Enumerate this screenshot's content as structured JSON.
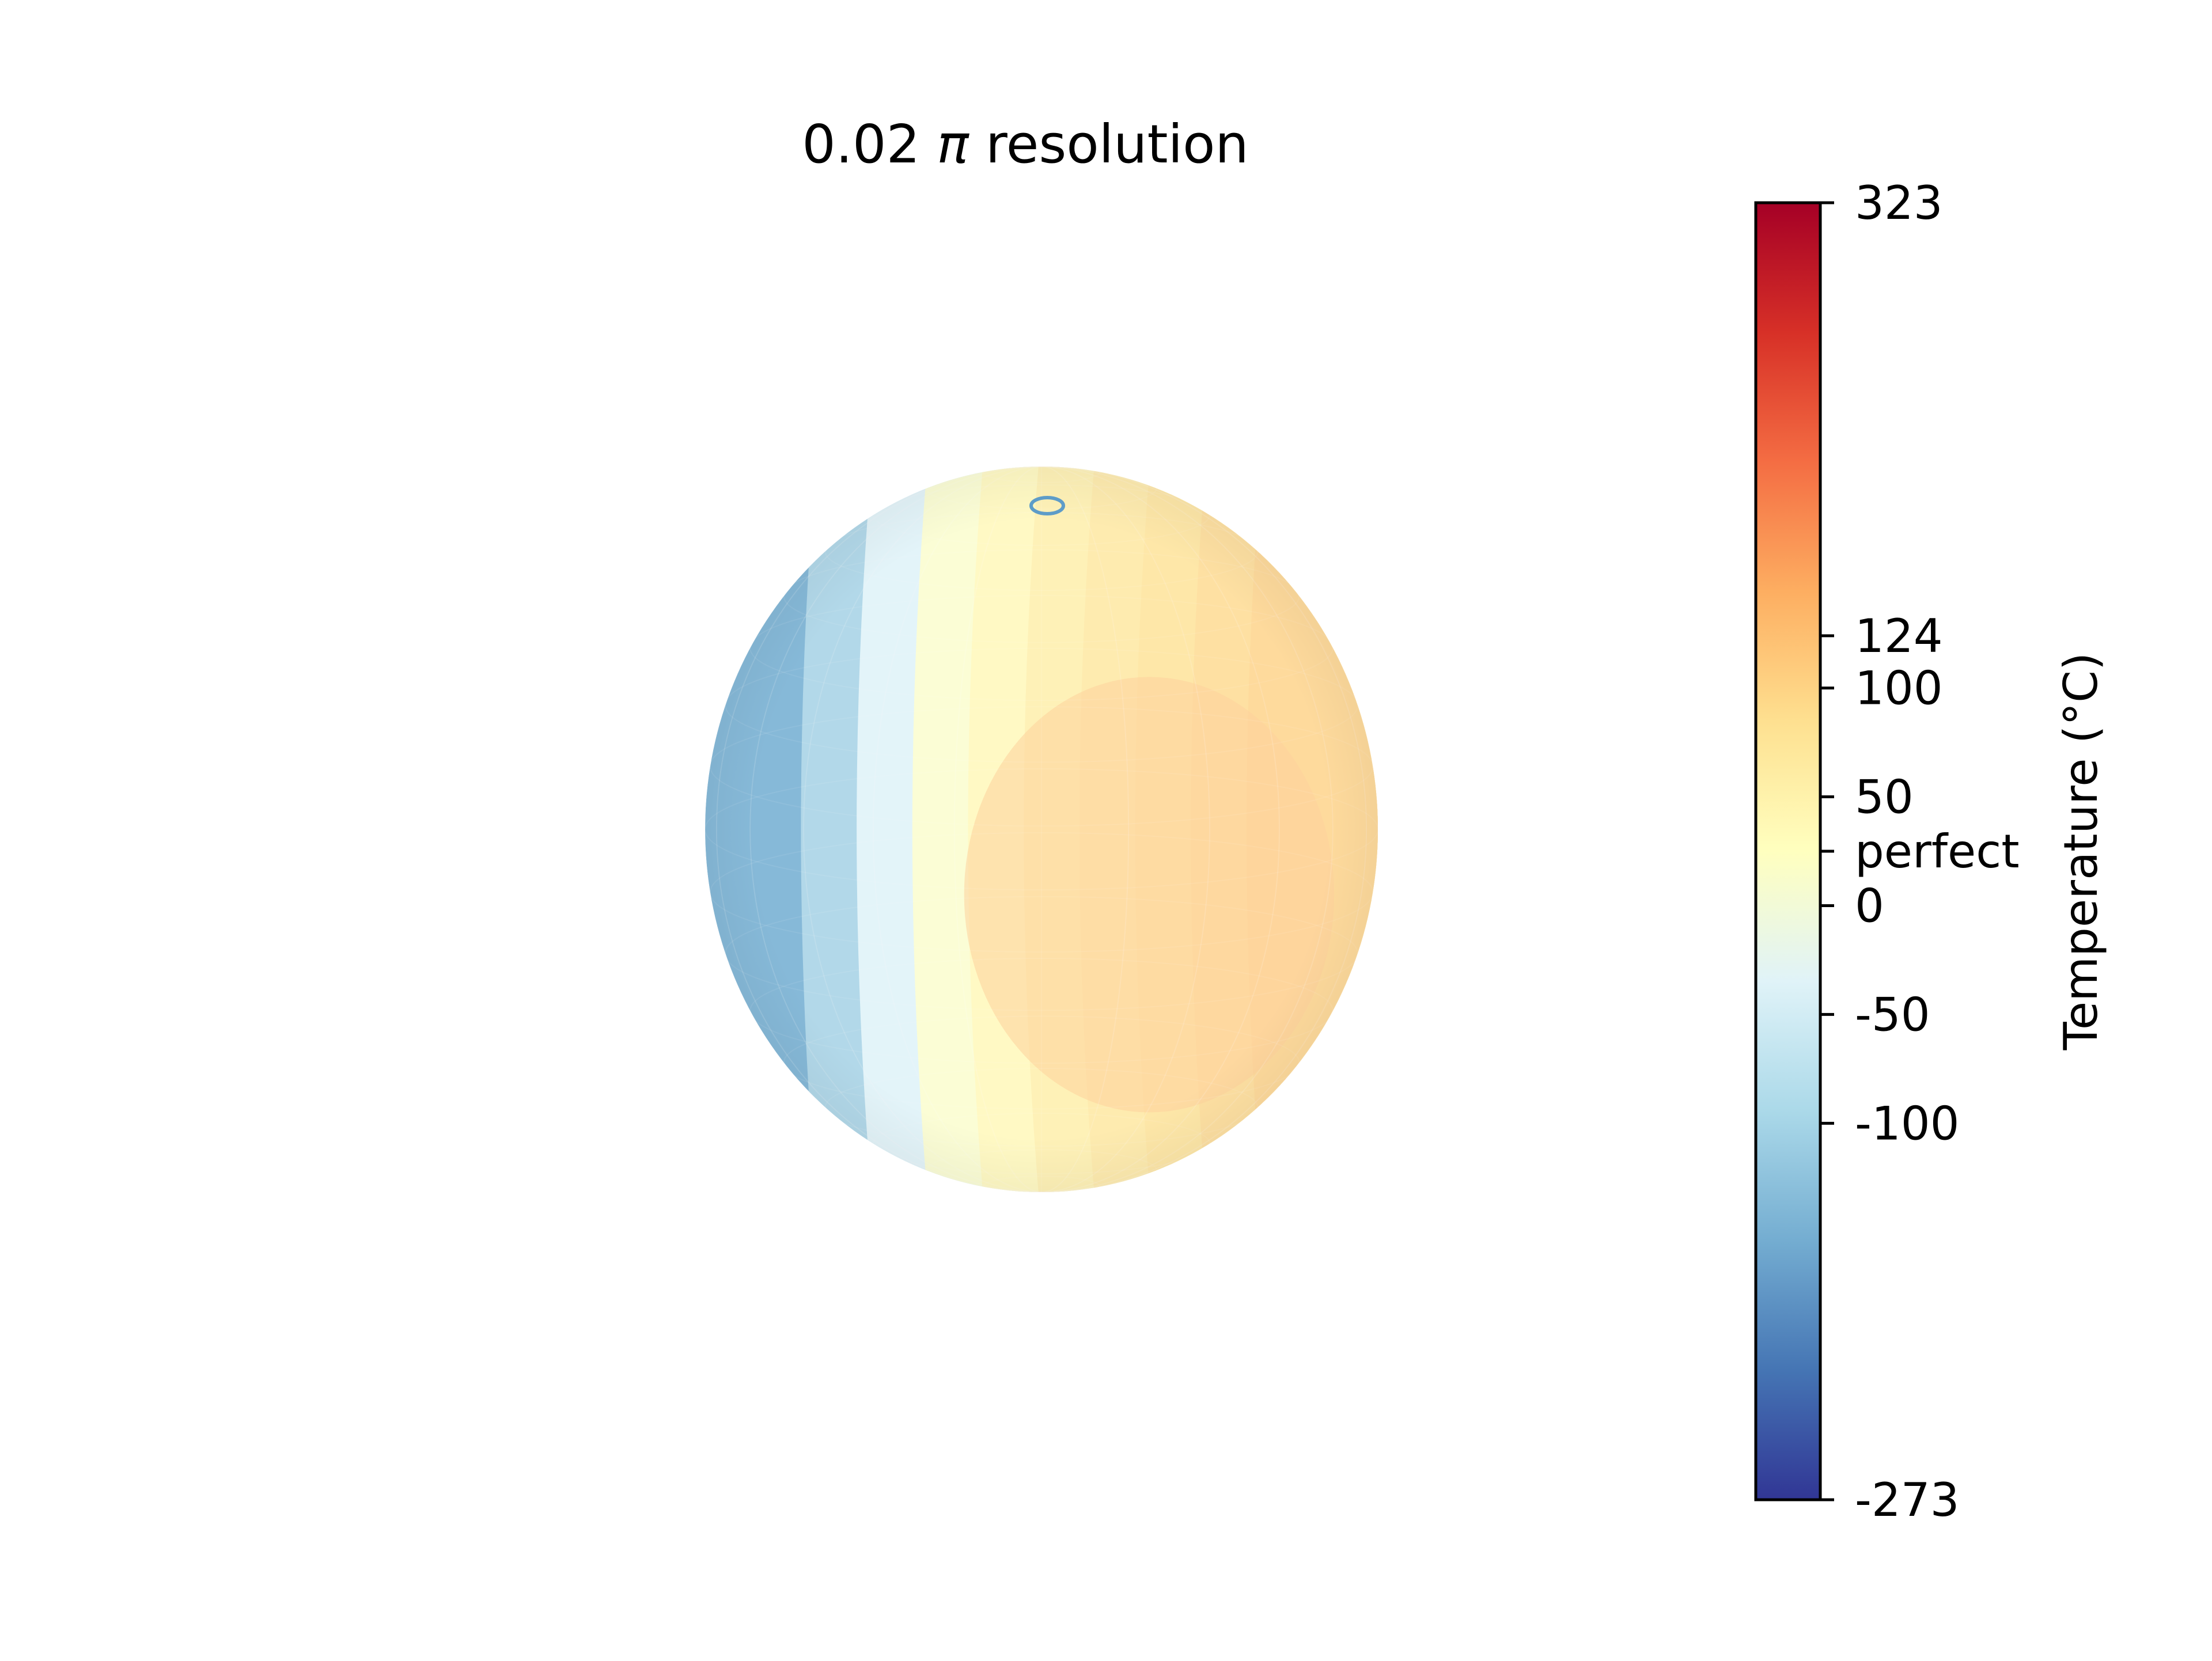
{
  "chart_data": {
    "type": "heatmap",
    "title_prefix": "0.02",
    "title_symbol": "π",
    "title_suffix": "resolution",
    "colorbar": {
      "label": "Temperature (°C)",
      "range": [
        -273,
        323
      ],
      "colormap": "RdYlBu_r",
      "colormap_stops": [
        "#313695",
        "#4575b4",
        "#74add1",
        "#abd9e9",
        "#e0f3f8",
        "#ffffbf",
        "#fee090",
        "#fdae61",
        "#f46d43",
        "#d73027",
        "#a50026"
      ],
      "ticks": [
        {
          "value": 323,
          "label": "323"
        },
        {
          "value": 124,
          "label": "124"
        },
        {
          "value": 100,
          "label": "100"
        },
        {
          "value": 50,
          "label": "50"
        },
        {
          "value": 25,
          "label": "perfect"
        },
        {
          "value": 0,
          "label": "0"
        },
        {
          "value": -50,
          "label": "-50"
        },
        {
          "value": -100,
          "label": "-100"
        },
        {
          "value": -273,
          "label": "-273"
        }
      ]
    },
    "surface": {
      "shape": "sphere",
      "night_side_temperature": -145,
      "max_temperature": 124,
      "terminator_temperatures": [
        -110,
        -40,
        15,
        40,
        60,
        75,
        85,
        95,
        105
      ],
      "grid": true
    }
  }
}
